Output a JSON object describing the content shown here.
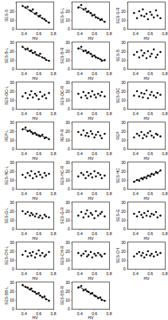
{
  "chart_data": [
    {
      "type": "scatter",
      "x_label": "HV",
      "y_label": "SES-S",
      "x": [
        0.38,
        0.42,
        0.45,
        0.48,
        0.5,
        0.52,
        0.55,
        0.57,
        0.6,
        0.62,
        0.65,
        0.68,
        0.7,
        0.74
      ],
      "values": [
        26,
        24,
        25,
        21,
        20,
        22,
        17,
        18,
        14,
        15,
        12,
        11,
        9,
        7
      ],
      "xlim": [
        0.3,
        0.8
      ],
      "xticks": [
        0.4,
        0.6,
        0.8
      ],
      "ylim": [
        0,
        30
      ],
      "yticks": [
        0,
        10,
        20,
        30
      ],
      "color": "#000000",
      "marker": "circle",
      "fit": {
        "x": [
          0.38,
          0.74
        ],
        "y": [
          26,
          7
        ]
      }
    },
    {
      "type": "scatter",
      "x_label": "HV",
      "y_label": "SES-S-L",
      "x": [
        0.38,
        0.42,
        0.45,
        0.48,
        0.5,
        0.52,
        0.55,
        0.57,
        0.6,
        0.62,
        0.65,
        0.68,
        0.7,
        0.74
      ],
      "values": [
        24,
        27,
        22,
        23,
        19,
        20,
        18,
        15,
        16,
        13,
        12,
        10,
        11,
        8
      ],
      "xlim": [
        0.3,
        0.8
      ],
      "xticks": [
        0.4,
        0.6,
        0.8
      ],
      "ylim": [
        0,
        30
      ],
      "yticks": [
        0,
        10,
        20,
        30
      ],
      "color": "#000000",
      "marker": "circle",
      "fit": {
        "x": [
          0.38,
          0.74
        ],
        "y": [
          25.5,
          8
        ]
      }
    },
    {
      "type": "scatter",
      "x_label": "HV",
      "y_label": "SES-S-R",
      "x": [
        0.38,
        0.42,
        0.45,
        0.48,
        0.5,
        0.52,
        0.55,
        0.57,
        0.6,
        0.62,
        0.65,
        0.68,
        0.7,
        0.74
      ],
      "values": [
        18,
        12,
        20,
        15,
        22,
        14,
        17,
        11,
        19,
        16,
        13,
        21,
        15,
        12
      ],
      "xlim": [
        0.3,
        0.8
      ],
      "xticks": [
        0.4,
        0.6,
        0.8
      ],
      "ylim": [
        0,
        30
      ],
      "yticks": [
        0,
        10,
        20,
        30
      ],
      "color": "#000000",
      "marker": "circle"
    },
    {
      "type": "scatter",
      "x_label": "HV",
      "y_label": "SES-B-L",
      "x": [
        0.38,
        0.42,
        0.45,
        0.48,
        0.5,
        0.52,
        0.55,
        0.57,
        0.6,
        0.62,
        0.65,
        0.68,
        0.7,
        0.74
      ],
      "values": [
        25,
        22,
        23,
        20,
        21,
        18,
        19,
        16,
        15,
        17,
        13,
        12,
        10,
        9
      ],
      "xlim": [
        0.3,
        0.8
      ],
      "xticks": [
        0.4,
        0.6,
        0.8
      ],
      "ylim": [
        0,
        30
      ],
      "yticks": [
        0,
        10,
        20,
        30
      ],
      "color": "#000000",
      "marker": "circle",
      "fit": {
        "x": [
          0.38,
          0.74
        ],
        "y": [
          24.5,
          9
        ]
      }
    },
    {
      "type": "scatter",
      "x_label": "HV",
      "y_label": "SES-B-R",
      "x": [
        0.38,
        0.42,
        0.45,
        0.48,
        0.5,
        0.52,
        0.55,
        0.57,
        0.6,
        0.62,
        0.65,
        0.68,
        0.7,
        0.74
      ],
      "values": [
        23,
        25,
        20,
        21,
        18,
        19,
        17,
        14,
        15,
        13,
        12,
        11,
        9,
        10
      ],
      "xlim": [
        0.3,
        0.8
      ],
      "xticks": [
        0.4,
        0.6,
        0.8
      ],
      "ylim": [
        0,
        30
      ],
      "yticks": [
        0,
        10,
        20,
        30
      ],
      "color": "#000000",
      "marker": "circle",
      "fit": {
        "x": [
          0.38,
          0.74
        ],
        "y": [
          24,
          8.5
        ]
      }
    },
    {
      "type": "scatter",
      "x_label": "HV",
      "y_label": "SES-B",
      "x": [
        0.38,
        0.42,
        0.45,
        0.48,
        0.5,
        0.52,
        0.55,
        0.57,
        0.6,
        0.62,
        0.65,
        0.68,
        0.7,
        0.74
      ],
      "values": [
        16,
        19,
        13,
        21,
        15,
        18,
        12,
        20,
        14,
        17,
        22,
        13,
        16,
        19
      ],
      "xlim": [
        0.3,
        0.8
      ],
      "xticks": [
        0.4,
        0.6,
        0.8
      ],
      "ylim": [
        0,
        30
      ],
      "yticks": [
        0,
        10,
        20,
        30
      ],
      "color": "#000000",
      "marker": "circle"
    },
    {
      "type": "scatter",
      "x_label": "HV",
      "y_label": "SES-OC-L",
      "x": [
        0.38,
        0.42,
        0.45,
        0.48,
        0.5,
        0.52,
        0.55,
        0.57,
        0.6,
        0.62,
        0.65,
        0.68,
        0.7,
        0.74
      ],
      "values": [
        14,
        18,
        12,
        16,
        20,
        13,
        17,
        15,
        11,
        19,
        14,
        16,
        12,
        18
      ],
      "xlim": [
        0.3,
        0.8
      ],
      "xticks": [
        0.4,
        0.6,
        0.8
      ],
      "ylim": [
        0,
        30
      ],
      "yticks": [
        0,
        10,
        20,
        30
      ],
      "color": "#000000",
      "marker": "circle"
    },
    {
      "type": "scatter",
      "x_label": "HV",
      "y_label": "SES-OC-R",
      "x": [
        0.38,
        0.42,
        0.45,
        0.48,
        0.5,
        0.52,
        0.55,
        0.57,
        0.6,
        0.62,
        0.65,
        0.68,
        0.7,
        0.74
      ],
      "values": [
        17,
        13,
        19,
        15,
        12,
        18,
        14,
        20,
        16,
        13,
        17,
        15,
        19,
        14
      ],
      "xlim": [
        0.3,
        0.8
      ],
      "xticks": [
        0.4,
        0.6,
        0.8
      ],
      "ylim": [
        0,
        30
      ],
      "yticks": [
        0,
        10,
        20,
        30
      ],
      "color": "#000000",
      "marker": "circle"
    },
    {
      "type": "scatter",
      "x_label": "HV",
      "y_label": "SES-OC",
      "x": [
        0.38,
        0.42,
        0.45,
        0.48,
        0.5,
        0.52,
        0.55,
        0.57,
        0.6,
        0.62,
        0.65,
        0.68,
        0.7,
        0.74
      ],
      "values": [
        15,
        20,
        14,
        18,
        13,
        17,
        21,
        12,
        16,
        19,
        15,
        13,
        18,
        16
      ],
      "xlim": [
        0.3,
        0.8
      ],
      "xticks": [
        0.4,
        0.6,
        0.8
      ],
      "ylim": [
        0,
        30
      ],
      "yticks": [
        0,
        10,
        20,
        30
      ],
      "color": "#000000",
      "marker": "circle"
    },
    {
      "type": "scatter",
      "x_label": "HV",
      "y_label": "REP-L",
      "x": [
        0.38,
        0.42,
        0.45,
        0.48,
        0.5,
        0.52,
        0.55,
        0.57,
        0.6,
        0.62,
        0.65,
        0.68,
        0.7,
        0.74
      ],
      "values": [
        22,
        24,
        20,
        21,
        19,
        17,
        18,
        16,
        15,
        14,
        16,
        12,
        13,
        11
      ],
      "xlim": [
        0.3,
        0.8
      ],
      "xticks": [
        0.4,
        0.6,
        0.8
      ],
      "ylim": [
        0,
        30
      ],
      "yticks": [
        0,
        10,
        20,
        30
      ],
      "color": "#000000",
      "marker": "circle",
      "fit": {
        "x": [
          0.38,
          0.74
        ],
        "y": [
          23,
          11.5
        ]
      }
    },
    {
      "type": "scatter",
      "x_label": "HV",
      "y_label": "REP-R",
      "x": [
        0.38,
        0.42,
        0.45,
        0.48,
        0.5,
        0.52,
        0.55,
        0.57,
        0.6,
        0.62,
        0.65,
        0.68,
        0.7,
        0.74
      ],
      "values": [
        19,
        16,
        21,
        15,
        18,
        14,
        20,
        17,
        13,
        16,
        19,
        15,
        12,
        17
      ],
      "xlim": [
        0.3,
        0.8
      ],
      "xticks": [
        0.4,
        0.6,
        0.8
      ],
      "ylim": [
        0,
        30
      ],
      "yticks": [
        0,
        10,
        20,
        30
      ],
      "color": "#000000",
      "marker": "circle"
    },
    {
      "type": "scatter",
      "x_label": "HV",
      "y_label": "REP",
      "x": [
        0.38,
        0.42,
        0.45,
        0.48,
        0.5,
        0.52,
        0.55,
        0.57,
        0.6,
        0.62,
        0.65,
        0.68,
        0.7,
        0.74
      ],
      "values": [
        13,
        17,
        15,
        19,
        12,
        16,
        14,
        18,
        20,
        15,
        13,
        17,
        16,
        14
      ],
      "xlim": [
        0.3,
        0.8
      ],
      "xticks": [
        0.4,
        0.6,
        0.8
      ],
      "ylim": [
        0,
        30
      ],
      "yticks": [
        0,
        10,
        20,
        30
      ],
      "color": "#000000",
      "marker": "circle"
    },
    {
      "type": "scatter",
      "x_label": "HV",
      "y_label": "SES-HC-L",
      "x": [
        0.38,
        0.42,
        0.45,
        0.48,
        0.5,
        0.52,
        0.55,
        0.57,
        0.6,
        0.62,
        0.65,
        0.68,
        0.7,
        0.74
      ],
      "values": [
        16,
        13,
        18,
        15,
        20,
        12,
        17,
        14,
        19,
        16,
        13,
        18,
        15,
        17
      ],
      "xlim": [
        0.3,
        0.8
      ],
      "xticks": [
        0.4,
        0.6,
        0.8
      ],
      "ylim": [
        0,
        30
      ],
      "yticks": [
        0,
        10,
        20,
        30
      ],
      "color": "#000000",
      "marker": "circle"
    },
    {
      "type": "scatter",
      "x_label": "HV",
      "y_label": "SES-HC-R",
      "x": [
        0.38,
        0.42,
        0.45,
        0.48,
        0.5,
        0.52,
        0.55,
        0.57,
        0.6,
        0.62,
        0.65,
        0.68,
        0.7,
        0.74
      ],
      "values": [
        14,
        18,
        16,
        12,
        19,
        15,
        17,
        13,
        20,
        14,
        18,
        16,
        12,
        15
      ],
      "xlim": [
        0.3,
        0.8
      ],
      "xticks": [
        0.4,
        0.6,
        0.8
      ],
      "ylim": [
        0,
        30
      ],
      "yticks": [
        0,
        10,
        20,
        30
      ],
      "color": "#000000",
      "marker": "circle"
    },
    {
      "type": "scatter",
      "x_label": "HV",
      "y_label": "SES-HC",
      "x": [
        0.38,
        0.42,
        0.45,
        0.48,
        0.5,
        0.52,
        0.55,
        0.57,
        0.6,
        0.62,
        0.65,
        0.68,
        0.7,
        0.74
      ],
      "values": [
        8,
        10,
        9,
        12,
        11,
        13,
        12,
        15,
        14,
        17,
        16,
        19,
        18,
        21
      ],
      "xlim": [
        0.3,
        0.8
      ],
      "xticks": [
        0.4,
        0.6,
        0.8
      ],
      "ylim": [
        0,
        30
      ],
      "yticks": [
        0,
        10,
        20,
        30
      ],
      "color": "#000000",
      "marker": "circle",
      "fit": {
        "x": [
          0.38,
          0.74
        ],
        "y": [
          8.5,
          20
        ]
      }
    },
    {
      "type": "scatter",
      "x_label": "HV",
      "y_label": "SES-G-L",
      "x": [
        0.38,
        0.42,
        0.45,
        0.48,
        0.5,
        0.52,
        0.55,
        0.57,
        0.6,
        0.62,
        0.65,
        0.68,
        0.7,
        0.74
      ],
      "values": [
        20,
        17,
        19,
        15,
        18,
        16,
        14,
        17,
        13,
        15,
        12,
        16,
        14,
        13
      ],
      "xlim": [
        0.3,
        0.8
      ],
      "xticks": [
        0.4,
        0.6,
        0.8
      ],
      "ylim": [
        0,
        30
      ],
      "yticks": [
        0,
        10,
        20,
        30
      ],
      "color": "#000000",
      "marker": "circle"
    },
    {
      "type": "scatter",
      "x_label": "HV",
      "y_label": "SES-G-R",
      "x": [
        0.38,
        0.42,
        0.45,
        0.48,
        0.5,
        0.52,
        0.55,
        0.57,
        0.6,
        0.62,
        0.65,
        0.68,
        0.7,
        0.74
      ],
      "values": [
        15,
        19,
        13,
        17,
        21,
        14,
        18,
        16,
        12,
        20,
        15,
        17,
        19,
        14
      ],
      "xlim": [
        0.3,
        0.8
      ],
      "xticks": [
        0.4,
        0.6,
        0.8
      ],
      "ylim": [
        0,
        30
      ],
      "yticks": [
        0,
        10,
        20,
        30
      ],
      "color": "#000000",
      "marker": "circle"
    },
    {
      "type": "scatter",
      "x_label": "HV",
      "y_label": "SES-G",
      "x": [
        0.38,
        0.42,
        0.45,
        0.48,
        0.5,
        0.52,
        0.55,
        0.57,
        0.6,
        0.62,
        0.65,
        0.68,
        0.7,
        0.74
      ],
      "values": [
        17,
        14,
        19,
        16,
        13,
        18,
        15,
        20,
        14,
        17,
        16,
        19,
        13,
        15
      ],
      "xlim": [
        0.3,
        0.8
      ],
      "xticks": [
        0.4,
        0.6,
        0.8
      ],
      "ylim": [
        0,
        30
      ],
      "yticks": [
        0,
        10,
        20,
        30
      ],
      "color": "#000000",
      "marker": "circle"
    },
    {
      "type": "scatter",
      "x_label": "HV",
      "y_label": "SES-CH-L",
      "x": [
        0.38,
        0.42,
        0.45,
        0.48,
        0.5,
        0.52,
        0.55,
        0.57,
        0.6,
        0.62,
        0.65,
        0.68,
        0.7,
        0.74
      ],
      "values": [
        16,
        20,
        14,
        18,
        15,
        19,
        13,
        17,
        21,
        15,
        18,
        14,
        16,
        19
      ],
      "xlim": [
        0.3,
        0.8
      ],
      "xticks": [
        0.4,
        0.6,
        0.8
      ],
      "ylim": [
        0,
        30
      ],
      "yticks": [
        0,
        10,
        20,
        30
      ],
      "color": "#000000",
      "marker": "circle"
    },
    {
      "type": "scatter",
      "x_label": "HV",
      "y_label": "SES-CH-R",
      "x": [
        0.38,
        0.42,
        0.45,
        0.48,
        0.5,
        0.52,
        0.55,
        0.57,
        0.6,
        0.62,
        0.65,
        0.68,
        0.7,
        0.74
      ],
      "values": [
        18,
        15,
        17,
        20,
        14,
        16,
        19,
        13,
        17,
        15,
        18,
        16,
        14,
        17
      ],
      "xlim": [
        0.3,
        0.8
      ],
      "xticks": [
        0.4,
        0.6,
        0.8
      ],
      "ylim": [
        0,
        30
      ],
      "yticks": [
        0,
        10,
        20,
        30
      ],
      "color": "#000000",
      "marker": "circle"
    },
    {
      "type": "scatter",
      "x_label": "HV",
      "y_label": "SES-CH",
      "x": [
        0.38,
        0.42,
        0.45,
        0.48,
        0.5,
        0.52,
        0.55,
        0.57,
        0.6,
        0.62,
        0.65,
        0.68,
        0.7,
        0.74
      ],
      "values": [
        14,
        17,
        19,
        15,
        18,
        13,
        16,
        20,
        15,
        17,
        14,
        19,
        16,
        18
      ],
      "xlim": [
        0.3,
        0.8
      ],
      "xticks": [
        0.4,
        0.6,
        0.8
      ],
      "ylim": [
        0,
        30
      ],
      "yticks": [
        0,
        10,
        20,
        30
      ],
      "color": "#000000",
      "marker": "circle"
    },
    {
      "type": "scatter",
      "x_label": "HV",
      "y_label": "SES-BB-L",
      "x": [
        0.38,
        0.42,
        0.45,
        0.48,
        0.5,
        0.52,
        0.55,
        0.57,
        0.6,
        0.62,
        0.65,
        0.68,
        0.7,
        0.74
      ],
      "values": [
        27,
        25,
        24,
        22,
        23,
        20,
        19,
        17,
        18,
        15,
        13,
        14,
        11,
        9
      ],
      "xlim": [
        0.3,
        0.8
      ],
      "xticks": [
        0.4,
        0.6,
        0.8
      ],
      "ylim": [
        0,
        30
      ],
      "yticks": [
        0,
        10,
        20,
        30
      ],
      "color": "#000000",
      "marker": "circle",
      "fit": {
        "x": [
          0.38,
          0.74
        ],
        "y": [
          26.5,
          9.5
        ]
      }
    },
    {
      "type": "scatter",
      "x_label": "HV",
      "y_label": "SES-BB-R",
      "x": [
        0.38,
        0.42,
        0.45,
        0.48,
        0.5,
        0.52,
        0.55,
        0.57,
        0.6,
        0.62,
        0.65,
        0.68,
        0.7,
        0.74
      ],
      "values": [
        24,
        26,
        21,
        22,
        20,
        19,
        17,
        18,
        15,
        14,
        12,
        13,
        10,
        9
      ],
      "xlim": [
        0.3,
        0.8
      ],
      "xticks": [
        0.4,
        0.6,
        0.8
      ],
      "ylim": [
        0,
        30
      ],
      "yticks": [
        0,
        10,
        20,
        30
      ],
      "color": "#000000",
      "marker": "circle",
      "fit": {
        "x": [
          0.38,
          0.74
        ],
        "y": [
          25.5,
          9
        ]
      }
    }
  ]
}
